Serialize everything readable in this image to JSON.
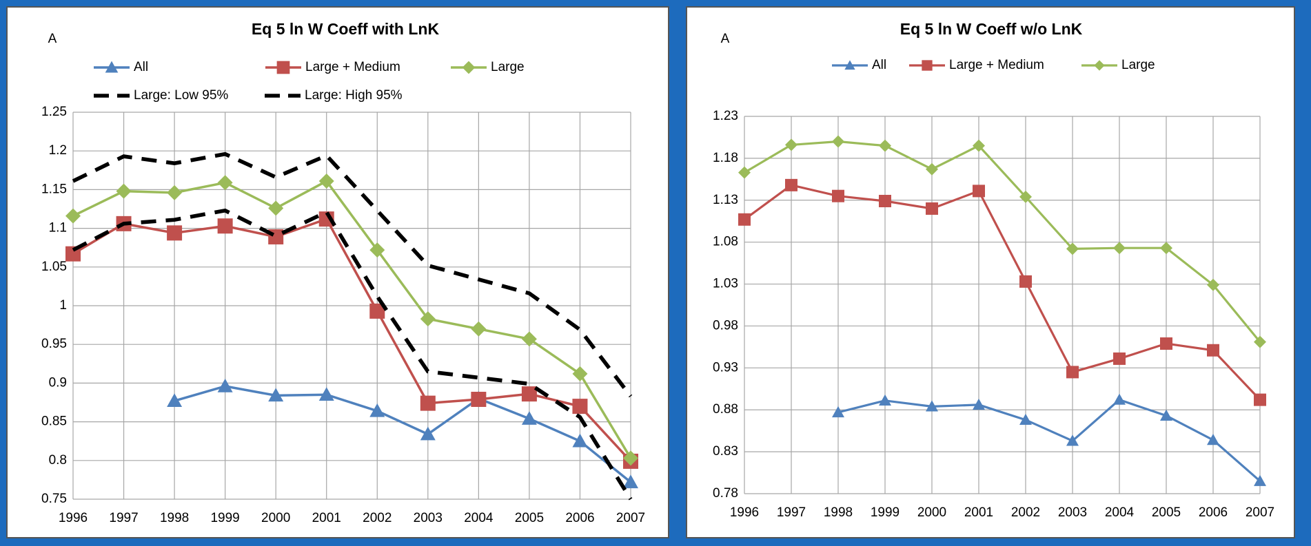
{
  "chart_data": [
    {
      "type": "line",
      "title": "Eq 5 ln W Coeff with LnK",
      "annotation": "A",
      "categories": [
        "1996",
        "1997",
        "1998",
        "1999",
        "2000",
        "2001",
        "2002",
        "2003",
        "2004",
        "2005",
        "2006",
        "2007"
      ],
      "ylim": [
        0.75,
        1.25
      ],
      "yticks": [
        0.75,
        0.8,
        0.85,
        0.9,
        0.95,
        1,
        1.05,
        1.1,
        1.15,
        1.2,
        1.25
      ],
      "grid": true,
      "series": [
        {
          "name": "All",
          "color": "#4f81bd",
          "marker": "triangle",
          "values": [
            null,
            null,
            0.877,
            0.896,
            0.884,
            0.885,
            0.864,
            0.834,
            0.88,
            0.854,
            0.825,
            0.772
          ]
        },
        {
          "name": "Large + Medium",
          "color": "#c0504d",
          "marker": "square",
          "values": [
            1.067,
            1.106,
            1.094,
            1.103,
            1.089,
            1.112,
            0.993,
            0.874,
            0.879,
            0.886,
            0.87,
            0.799
          ]
        },
        {
          "name": "Large",
          "color": "#9bbb59",
          "marker": "diamond",
          "values": [
            1.116,
            1.148,
            1.146,
            1.159,
            1.126,
            1.161,
            1.072,
            0.983,
            0.97,
            0.957,
            0.912,
            0.803
          ]
        },
        {
          "name": "Large: Low 95%",
          "color": "#000000",
          "dashed": true,
          "values": [
            1.072,
            1.106,
            1.111,
            1.123,
            1.09,
            1.121,
            1.012,
            0.915,
            0.907,
            0.899,
            0.856,
            0.75
          ]
        },
        {
          "name": "Large: High 95%",
          "color": "#000000",
          "dashed": true,
          "values": [
            1.161,
            1.193,
            1.184,
            1.196,
            1.166,
            1.194,
            1.123,
            1.052,
            1.034,
            1.016,
            0.969,
            0.883
          ]
        }
      ]
    },
    {
      "type": "line",
      "title": "Eq 5 ln W Coeff w/o LnK",
      "annotation": "A",
      "categories": [
        "1996",
        "1997",
        "1998",
        "1999",
        "2000",
        "2001",
        "2002",
        "2003",
        "2004",
        "2005",
        "2006",
        "2007"
      ],
      "ylim": [
        0.78,
        1.23
      ],
      "yticks": [
        0.78,
        0.83,
        0.88,
        0.93,
        0.98,
        1.03,
        1.08,
        1.13,
        1.18,
        1.23
      ],
      "grid": true,
      "series": [
        {
          "name": "All",
          "color": "#4f81bd",
          "marker": "triangle",
          "values": [
            null,
            null,
            0.877,
            0.891,
            0.884,
            0.886,
            0.868,
            0.843,
            0.892,
            0.873,
            0.844,
            0.795
          ]
        },
        {
          "name": "Large + Medium",
          "color": "#c0504d",
          "marker": "square",
          "values": [
            1.107,
            1.148,
            1.135,
            1.129,
            1.12,
            1.141,
            1.033,
            0.925,
            0.941,
            0.959,
            0.951,
            0.892
          ]
        },
        {
          "name": "Large",
          "color": "#9bbb59",
          "marker": "diamond",
          "values": [
            1.163,
            1.196,
            1.2,
            1.195,
            1.167,
            1.195,
            1.134,
            1.072,
            1.073,
            1.073,
            1.029,
            0.961
          ]
        }
      ]
    }
  ]
}
